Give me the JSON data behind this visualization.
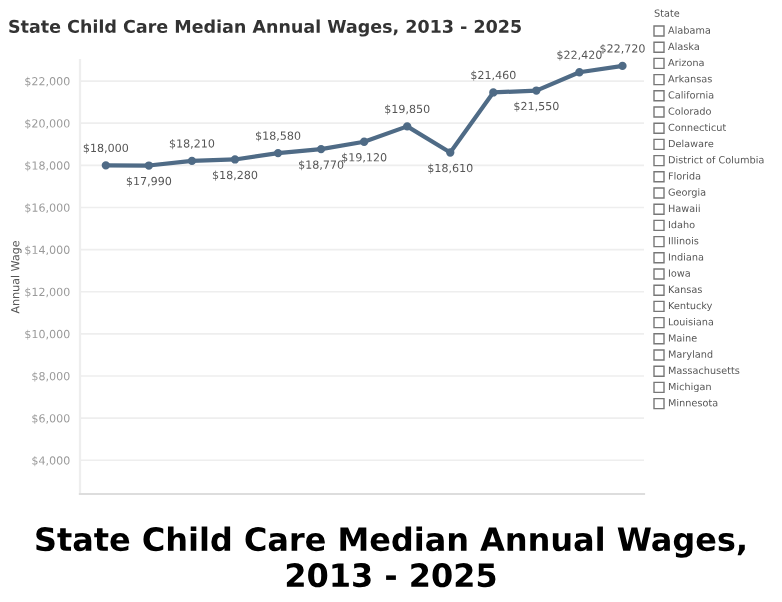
{
  "chart_data": [
    {
      "type": "line",
      "title": "State Child Care Median Annual Wages, 2013 - 2025",
      "ylabel": "Annual Wage",
      "categories": [
        null,
        null,
        null,
        null,
        null,
        null,
        null,
        null,
        null,
        null,
        null,
        null,
        null
      ],
      "series": [
        {
          "color": "#4f6b86",
          "values": [
            18000,
            17990,
            18210,
            18280,
            18580,
            18770,
            19120,
            19850,
            18610,
            21460,
            21550,
            22420,
            22720
          ],
          "value_labels": [
            "$18,000",
            "$17,990",
            "$18,210",
            "$18,280",
            "$18,580",
            "$18,770",
            "$19,120",
            "$19,850",
            "$18,610",
            "$21,460",
            "$21,550",
            "$22,420",
            "$22,720"
          ]
        }
      ],
      "ylim": [
        2400,
        23000
      ],
      "yticks": [
        {
          "value": 4000,
          "label": "$4,000"
        },
        {
          "value": 6000,
          "label": "$6,000"
        },
        {
          "value": 8000,
          "label": "$8,000"
        },
        {
          "value": 10000,
          "label": "$10,000"
        },
        {
          "value": 12000,
          "label": "$12,000"
        },
        {
          "value": 14000,
          "label": "$14,000"
        },
        {
          "value": 16000,
          "label": "$16,000"
        },
        {
          "value": 18000,
          "label": "$18,000"
        },
        {
          "value": 20000,
          "label": "$20,000"
        },
        {
          "value": 22000,
          "label": "$22,000"
        }
      ],
      "grid": "y",
      "marker": "circle",
      "line_style": "solid",
      "tick_labels": "y",
      "annotations": [
        "State Child Care Median Annual Wages,\n2013 - 2025"
      ]
    },
    {
      "type": "other",
      "title": "State",
      "annotations": [
        "Alabama",
        "Alaska",
        "Arizona",
        "Arkansas",
        "California",
        "Colorado",
        "Connecticut",
        "Delaware",
        "District of Columbia",
        "Florida",
        "Georgia",
        "Hawaii",
        "Idaho",
        "Illinois",
        "Indiana",
        "Iowa",
        "Kansas",
        "Kentucky",
        "Louisiana",
        "Maine",
        "Maryland",
        "Massachusetts",
        "Michigan",
        "Minnesota"
      ]
    }
  ]
}
